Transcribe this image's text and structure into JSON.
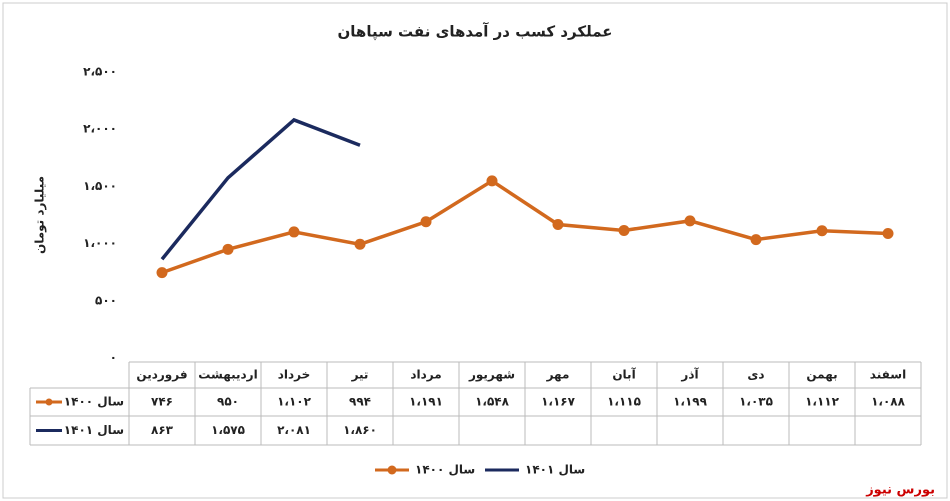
{
  "chart_data": {
    "type": "line",
    "title": "عملکرد کسب در آمدهای نفت سپاهان",
    "y_label": "میلیارد تومان",
    "source": "بورس نیوز",
    "categories": [
      "فروردین",
      "اردیبهشت",
      "خرداد",
      "تیر",
      "مرداد",
      "شهریور",
      "مهر",
      "آبان",
      "آذر",
      "دی",
      "بهمن",
      "اسفند"
    ],
    "series": [
      {
        "name": "سال ۱۴۰۰",
        "color": "#d2691e",
        "values": [
          746,
          950,
          1102,
          994,
          1191,
          1548,
          1167,
          1115,
          1199,
          1035,
          1112,
          1088
        ],
        "value_labels": [
          "۷۴۶",
          "۹۵۰",
          "۱،۱۰۲",
          "۹۹۴",
          "۱،۱۹۱",
          "۱،۵۴۸",
          "۱،۱۶۷",
          "۱،۱۱۵",
          "۱،۱۹۹",
          "۱،۰۳۵",
          "۱،۱۱۲",
          "۱،۰۸۸"
        ]
      },
      {
        "name": "سال ۱۴۰۱",
        "color": "#1b2a5e",
        "values": [
          863,
          1575,
          2081,
          1860,
          null,
          null,
          null,
          null,
          null,
          null,
          null,
          null
        ],
        "value_labels": [
          "۸۶۳",
          "۱،۵۷۵",
          "۲،۰۸۱",
          "۱،۸۶۰",
          null,
          null,
          null,
          null,
          null,
          null,
          null,
          null
        ]
      }
    ],
    "ylim": [
      0,
      2500
    ],
    "yticks": [
      {
        "value": 0,
        "label": "۰"
      },
      {
        "value": 500,
        "label": "۵۰۰"
      },
      {
        "value": 1000,
        "label": "۱،۰۰۰"
      },
      {
        "value": 1500,
        "label": "۱،۵۰۰"
      },
      {
        "value": 2000,
        "label": "۲،۰۰۰"
      },
      {
        "value": 2500,
        "label": "۲،۵۰۰"
      }
    ],
    "grid": false
  }
}
